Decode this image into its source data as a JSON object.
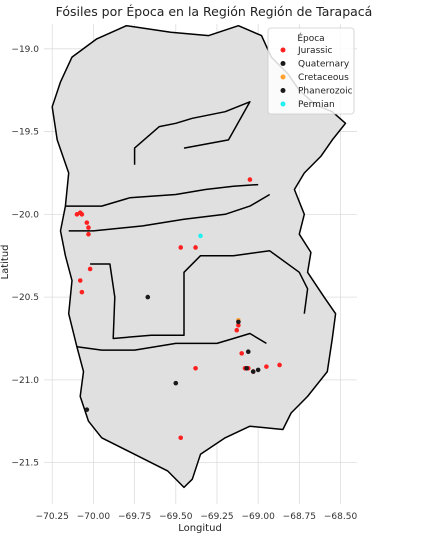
{
  "chart_data": {
    "type": "scatter",
    "title": "Fósiles por Época en la Región Región de Tarapacá",
    "xlabel": "Longitud",
    "ylabel": "Latitud",
    "xlim": [
      -70.3,
      -68.4
    ],
    "ylim": [
      -21.75,
      -18.85
    ],
    "xticks": [
      -70.25,
      -70.0,
      -69.75,
      -69.5,
      -69.25,
      -69.0,
      -68.75,
      -68.5
    ],
    "xtick_labels": [
      "−70.25",
      "−70.00",
      "−69.75",
      "−69.50",
      "−69.25",
      "−69.00",
      "−68.75",
      "−68.50"
    ],
    "yticks": [
      -19.0,
      -19.5,
      -20.0,
      -20.5,
      -21.0,
      -21.5
    ],
    "ytick_labels": [
      "−19.0",
      "−19.5",
      "−20.0",
      "−20.5",
      "−21.0",
      "−21.5"
    ],
    "grid": true,
    "legend": {
      "title": "Época",
      "placement": "top-right",
      "entries": [
        {
          "label": "Jurassic",
          "color": "#ff2020"
        },
        {
          "label": "Quaternary",
          "color": "#1a1a1a"
        },
        {
          "label": "Cretaceous",
          "color": "#ffa030"
        },
        {
          "label": "Phanerozoic",
          "color": "#1a1a1a"
        },
        {
          "label": "Permian",
          "color": "#20f0f0"
        }
      ]
    },
    "region_color": "#e0e0e0",
    "outline_color": "#000000",
    "regions": [
      {
        "name": "outer",
        "points": [
          [
            -70.2,
            -19.2
          ],
          [
            -70.13,
            -19.05
          ],
          [
            -69.98,
            -18.94
          ],
          [
            -69.8,
            -18.86
          ],
          [
            -69.53,
            -18.9
          ],
          [
            -69.3,
            -18.92
          ],
          [
            -69.12,
            -18.86
          ],
          [
            -68.98,
            -18.92
          ],
          [
            -68.92,
            -19.05
          ],
          [
            -68.82,
            -19.15
          ],
          [
            -68.75,
            -19.25
          ],
          [
            -68.65,
            -19.34
          ],
          [
            -68.55,
            -19.38
          ],
          [
            -68.47,
            -19.45
          ],
          [
            -68.55,
            -19.55
          ],
          [
            -68.62,
            -19.65
          ],
          [
            -68.72,
            -19.75
          ],
          [
            -68.78,
            -19.85
          ],
          [
            -68.72,
            -20.0
          ],
          [
            -68.75,
            -20.12
          ],
          [
            -68.68,
            -20.23
          ],
          [
            -68.7,
            -20.35
          ],
          [
            -68.6,
            -20.5
          ],
          [
            -68.53,
            -20.6
          ],
          [
            -68.55,
            -20.75
          ],
          [
            -68.58,
            -20.95
          ],
          [
            -68.7,
            -21.1
          ],
          [
            -68.8,
            -21.2
          ],
          [
            -68.85,
            -21.3
          ],
          [
            -69.05,
            -21.28
          ],
          [
            -69.2,
            -21.35
          ],
          [
            -69.35,
            -21.45
          ],
          [
            -69.4,
            -21.6
          ],
          [
            -69.45,
            -21.65
          ],
          [
            -69.55,
            -21.55
          ],
          [
            -69.75,
            -21.45
          ],
          [
            -69.95,
            -21.35
          ],
          [
            -70.03,
            -21.25
          ],
          [
            -70.08,
            -21.1
          ],
          [
            -70.06,
            -20.95
          ],
          [
            -70.1,
            -20.8
          ],
          [
            -70.15,
            -20.6
          ],
          [
            -70.13,
            -20.4
          ],
          [
            -70.17,
            -20.25
          ],
          [
            -70.2,
            -20.1
          ],
          [
            -70.17,
            -19.95
          ],
          [
            -70.15,
            -19.75
          ],
          [
            -70.22,
            -19.55
          ],
          [
            -70.25,
            -19.35
          ]
        ]
      },
      {
        "name": "northern-line",
        "points": [
          [
            -70.17,
            -19.95
          ],
          [
            -69.95,
            -19.95
          ],
          [
            -69.78,
            -19.9
          ],
          [
            -69.5,
            -19.88
          ],
          [
            -69.32,
            -19.85
          ],
          [
            -69.15,
            -19.83
          ],
          [
            -69.0,
            -19.82
          ]
        ]
      },
      {
        "name": "north-finger",
        "points": [
          [
            -69.75,
            -19.7
          ],
          [
            -69.75,
            -19.6
          ],
          [
            -69.6,
            -19.47
          ],
          [
            -69.5,
            -19.45
          ],
          [
            -69.4,
            -19.42
          ],
          [
            -69.2,
            -19.38
          ],
          [
            -69.05,
            -19.32
          ],
          [
            -69.18,
            -19.55
          ],
          [
            -69.45,
            -19.6
          ]
        ]
      },
      {
        "name": "central-line",
        "points": [
          [
            -70.15,
            -20.1
          ],
          [
            -70.0,
            -20.1
          ],
          [
            -69.7,
            -20.07
          ],
          [
            -69.45,
            -20.03
          ],
          [
            -69.2,
            -20.0
          ],
          [
            -69.05,
            -19.95
          ],
          [
            -68.93,
            -19.88
          ]
        ]
      },
      {
        "name": "inner-block",
        "points": [
          [
            -70.02,
            -20.3
          ],
          [
            -69.9,
            -20.3
          ],
          [
            -69.87,
            -20.5
          ],
          [
            -69.88,
            -20.75
          ],
          [
            -69.65,
            -20.73
          ],
          [
            -69.45,
            -20.73
          ],
          [
            -69.45,
            -20.35
          ],
          [
            -69.35,
            -20.25
          ],
          [
            -69.15,
            -20.25
          ],
          [
            -68.93,
            -20.22
          ],
          [
            -68.75,
            -20.35
          ],
          [
            -68.7,
            -20.45
          ],
          [
            -68.72,
            -20.6
          ]
        ]
      },
      {
        "name": "southern-line",
        "points": [
          [
            -70.1,
            -20.8
          ],
          [
            -69.95,
            -20.82
          ],
          [
            -69.75,
            -20.82
          ],
          [
            -69.5,
            -20.78
          ],
          [
            -69.25,
            -20.78
          ],
          [
            -69.15,
            -20.75
          ],
          [
            -69.05,
            -20.72
          ],
          [
            -68.95,
            -20.78
          ]
        ]
      }
    ],
    "series": [
      {
        "name": "Jurassic",
        "color": "#ff2020",
        "x": [
          -70.1,
          -70.08,
          -70.07,
          -70.04,
          -70.03,
          -70.03,
          -70.02,
          -70.08,
          -70.07,
          -69.05,
          -69.38,
          -69.47,
          -69.12,
          -69.13,
          -69.1,
          -69.03,
          -69.06,
          -68.95,
          -68.87,
          -69.47,
          -69.38,
          -69.08
        ],
        "y": [
          -20.0,
          -19.99,
          -20.0,
          -20.05,
          -20.08,
          -20.12,
          -20.33,
          -20.4,
          -20.47,
          -19.79,
          -20.2,
          -20.2,
          -20.67,
          -20.7,
          -20.84,
          -20.95,
          -20.93,
          -20.92,
          -20.91,
          -21.35,
          -20.93,
          -20.93
        ]
      },
      {
        "name": "Quaternary",
        "color": "#1a1a1a",
        "x": [
          -69.67,
          -69.5,
          -69.06,
          -69.03,
          -69.0
        ],
        "y": [
          -20.5,
          -21.02,
          -20.83,
          -20.95,
          -20.94
        ]
      },
      {
        "name": "Cretaceous",
        "color": "#ffa030",
        "x": [
          -69.12
        ],
        "y": [
          -20.64
        ]
      },
      {
        "name": "Phanerozoic",
        "color": "#1a1a1a",
        "x": [
          -70.04,
          -69.12,
          -69.07
        ],
        "y": [
          -21.18,
          -20.65,
          -20.93
        ]
      },
      {
        "name": "Permian",
        "color": "#20f0f0",
        "x": [
          -69.35
        ],
        "y": [
          -20.13
        ]
      }
    ]
  }
}
